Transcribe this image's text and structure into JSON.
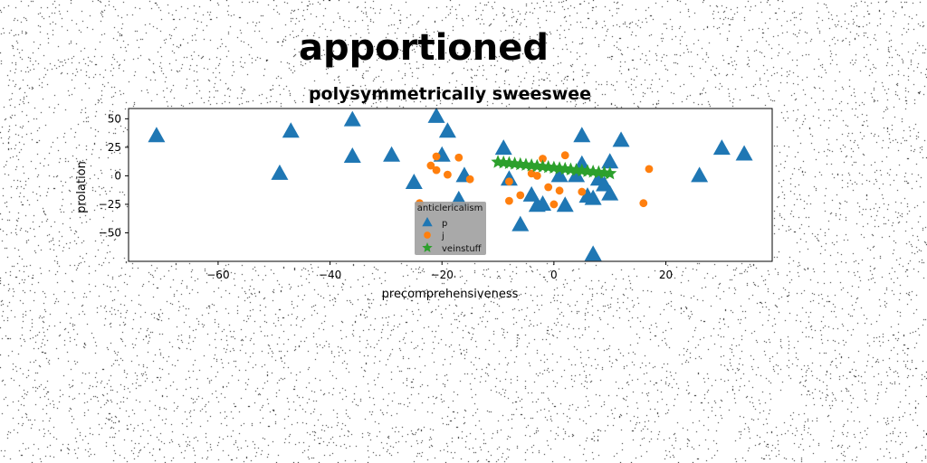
{
  "figure": {
    "suptitle": "apportioned",
    "title": "polysymmetrically sweeswee"
  },
  "chart_data": {
    "type": "scatter",
    "title": "polysymmetrically sweeswee",
    "xlabel": "precomprehensiveness",
    "ylabel": "prolation",
    "xlim": [
      -76,
      39
    ],
    "ylim": [
      -75,
      59
    ],
    "xticks": [
      -60,
      -40,
      -20,
      0,
      20
    ],
    "yticks": [
      50,
      25,
      0,
      -25,
      -50
    ],
    "xtick_labels": [
      "−60",
      "−40",
      "−20",
      "0",
      "20"
    ],
    "ytick_labels": [
      "50",
      "25",
      "0",
      "−25",
      "−50"
    ],
    "grid": false,
    "legend": {
      "title": "anticlericalism",
      "placement": "lower center",
      "background": "#a0a0a0"
    },
    "series": [
      {
        "name": "p",
        "marker": "triangle",
        "color": "#1f77b4",
        "points": [
          [
            -71,
            35
          ],
          [
            -49,
            2
          ],
          [
            -47,
            39
          ],
          [
            -36,
            49
          ],
          [
            -36,
            17
          ],
          [
            -29,
            18
          ],
          [
            -25,
            -6
          ],
          [
            -21,
            52
          ],
          [
            -20,
            18
          ],
          [
            -19,
            39
          ],
          [
            -16,
            0
          ],
          [
            -17,
            -21
          ],
          [
            -9,
            24
          ],
          [
            -8,
            -3
          ],
          [
            -6,
            -43
          ],
          [
            -4,
            -17
          ],
          [
            -3,
            -26
          ],
          [
            -2,
            -25
          ],
          [
            1,
            0
          ],
          [
            2,
            -26
          ],
          [
            4,
            0
          ],
          [
            5,
            35
          ],
          [
            5,
            10
          ],
          [
            6,
            -18
          ],
          [
            7,
            -20
          ],
          [
            7,
            -69
          ],
          [
            8,
            -3
          ],
          [
            9,
            -8
          ],
          [
            10,
            12
          ],
          [
            10,
            -16
          ],
          [
            12,
            31
          ],
          [
            26,
            0
          ],
          [
            30,
            24
          ],
          [
            34,
            19
          ]
        ]
      },
      {
        "name": "j",
        "marker": "circle",
        "color": "#ff7f0e",
        "points": [
          [
            -24,
            -24
          ],
          [
            -22,
            9
          ],
          [
            -21,
            17
          ],
          [
            -21,
            5
          ],
          [
            -19,
            1
          ],
          [
            -17,
            16
          ],
          [
            -15,
            -3
          ],
          [
            -8,
            -5
          ],
          [
            -8,
            -22
          ],
          [
            -6,
            -17
          ],
          [
            -4,
            2
          ],
          [
            -3,
            0
          ],
          [
            -2,
            15
          ],
          [
            -1,
            -10
          ],
          [
            0,
            -25
          ],
          [
            1,
            -13
          ],
          [
            2,
            18
          ],
          [
            5,
            -14
          ],
          [
            16,
            -24
          ],
          [
            17,
            6
          ]
        ]
      },
      {
        "name": "veinstuff",
        "marker": "star",
        "color": "#2ca02c",
        "points": [
          [
            -10,
            12
          ],
          [
            -9,
            11.5
          ],
          [
            -8,
            11
          ],
          [
            -7,
            10.5
          ],
          [
            -6,
            10
          ],
          [
            -5,
            9.5
          ],
          [
            -4,
            9
          ],
          [
            -3,
            8.5
          ],
          [
            -2,
            8
          ],
          [
            -1,
            7.5
          ],
          [
            0,
            7
          ],
          [
            1,
            6.5
          ],
          [
            2,
            6
          ],
          [
            3,
            5.5
          ],
          [
            4,
            5
          ],
          [
            5,
            4.5
          ],
          [
            6,
            4
          ],
          [
            7,
            3.5
          ],
          [
            8,
            3
          ],
          [
            9,
            2.5
          ],
          [
            10,
            2
          ]
        ]
      }
    ]
  }
}
